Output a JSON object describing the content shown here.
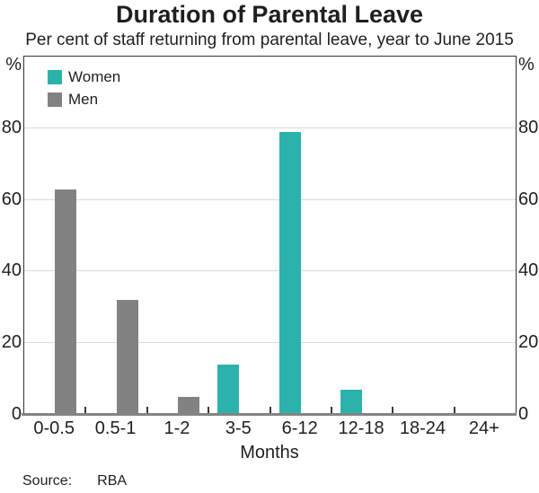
{
  "title": "Duration of Parental Leave",
  "subtitle": "Per cent of staff returning from parental leave, year to June 2015",
  "chart_data": {
    "type": "bar",
    "categories": [
      "0-0.5",
      "0.5-1",
      "1-2",
      "3-5",
      "6-12",
      "12-18",
      "18-24",
      "24+"
    ],
    "series": [
      {
        "name": "Women",
        "color": "#2BB3AB",
        "values": [
          0,
          0,
          0,
          14,
          79,
          7,
          0,
          0
        ]
      },
      {
        "name": "Men",
        "color": "#828282",
        "values": [
          63,
          32,
          5,
          0,
          0,
          0,
          0,
          0
        ]
      }
    ],
    "title": "Duration of Parental Leave",
    "subtitle": "Per cent of staff returning from parental leave, year to June 2015",
    "xlabel": "Months",
    "ylabel_left": "%",
    "ylabel_right": "%",
    "ylim": [
      0,
      100
    ],
    "yticks": [
      0,
      20,
      40,
      60,
      80
    ],
    "grid": true,
    "legend_position": "top-left",
    "colors": {
      "women": "#2BB3AB",
      "men": "#828282",
      "gridline": "#d9d9d9",
      "baseline": "#848484",
      "frame": "#333333",
      "text": "#1f1f1f"
    }
  },
  "footer": {
    "source_label": "Source:",
    "source_value": "RBA"
  }
}
